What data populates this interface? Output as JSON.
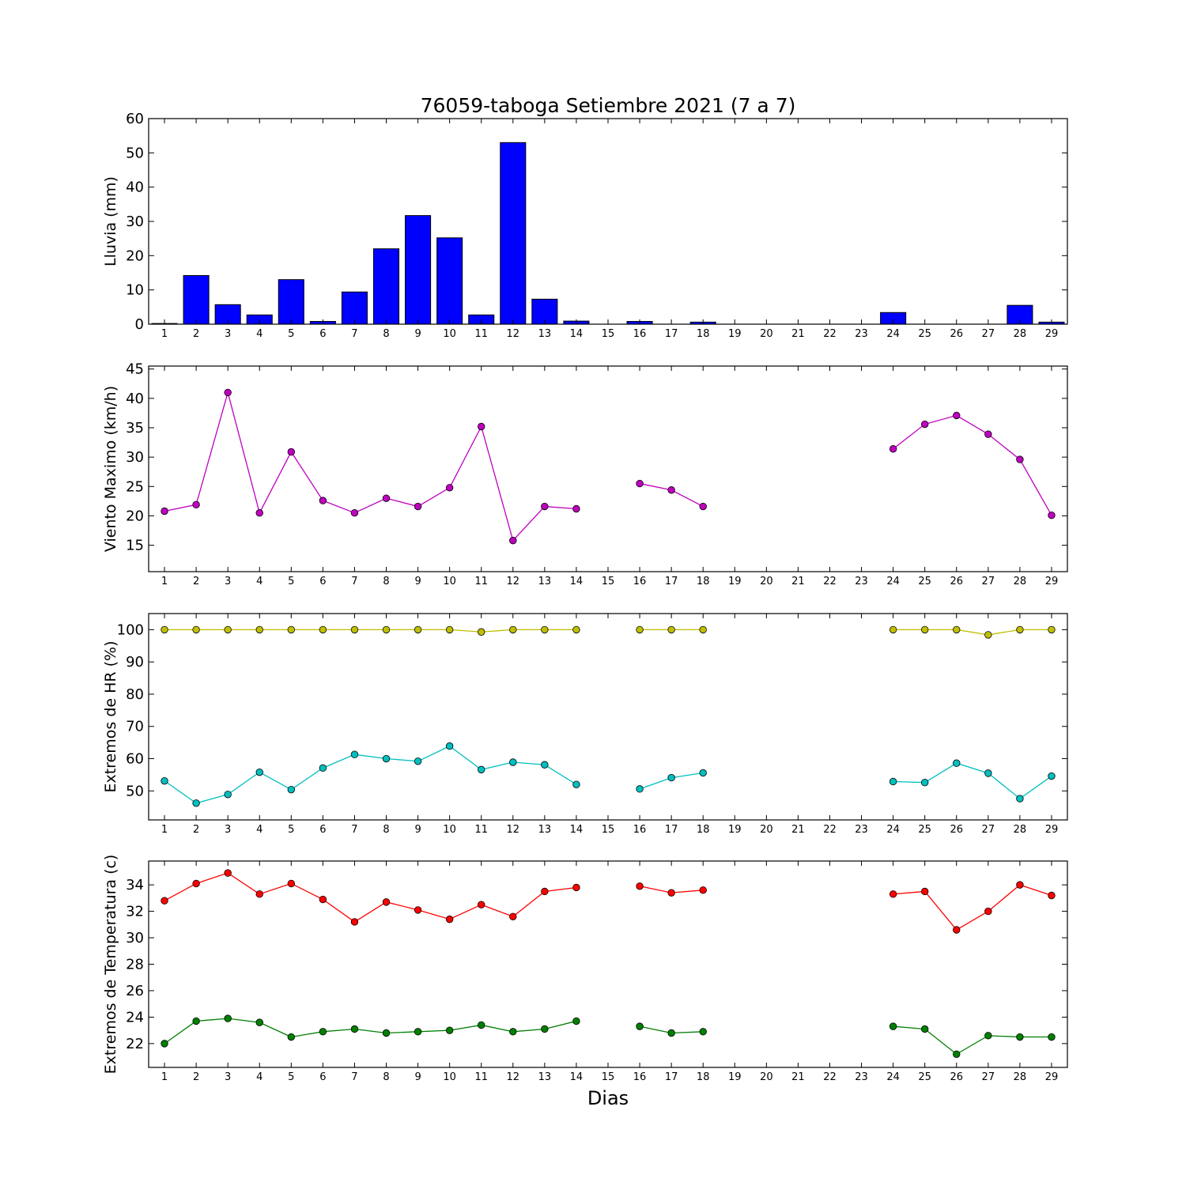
{
  "chart_data": {
    "title": "76059-taboga Setiembre 2021  (7 a 7)",
    "xlabel": "Dias",
    "days": [
      1,
      2,
      3,
      4,
      5,
      6,
      7,
      8,
      9,
      10,
      11,
      12,
      13,
      14,
      15,
      16,
      17,
      18,
      19,
      20,
      21,
      22,
      23,
      24,
      25,
      26,
      27,
      28,
      29
    ],
    "panels": [
      {
        "type": "bar",
        "ylabel": "Lluvia (mm)",
        "ylim": [
          0,
          60
        ],
        "yticks": [
          0,
          10,
          20,
          30,
          40,
          50,
          60
        ],
        "series": [
          {
            "color": "#0000ff",
            "values": [
              0.2,
              14.2,
              5.7,
              2.7,
              13.0,
              0.8,
              9.4,
              22.0,
              31.7,
              25.2,
              2.7,
              53.0,
              7.3,
              0.9,
              0,
              0.8,
              0,
              0.6,
              0,
              0,
              0,
              0,
              0,
              3.4,
              0,
              0,
              0,
              5.5,
              0.6
            ]
          }
        ]
      },
      {
        "type": "line",
        "ylabel": "Viento Maximo (km/h)",
        "ylim": [
          10.5,
          45.5
        ],
        "yticks": [
          15,
          20,
          25,
          30,
          35,
          40,
          45
        ],
        "series": [
          {
            "color": "#bf00bf",
            "values": [
              20.8,
              21.9,
              41.0,
              20.5,
              30.9,
              22.6,
              20.5,
              23.0,
              21.6,
              24.8,
              35.2,
              15.8,
              21.6,
              21.2,
              null,
              25.5,
              24.4,
              21.6,
              null,
              null,
              null,
              null,
              null,
              31.4,
              35.6,
              37.1,
              33.9,
              29.6,
              20.1
            ]
          }
        ]
      },
      {
        "type": "line",
        "ylabel": "Extremos de HR (%)",
        "ylim": [
          41,
          105
        ],
        "yticks": [
          50,
          60,
          70,
          80,
          90,
          100
        ],
        "series": [
          {
            "color": "#bfbf00",
            "values": [
              100,
              100,
              100,
              100,
              100,
              100,
              100,
              100,
              100,
              100,
              99.3,
              100,
              100,
              100,
              null,
              100,
              100,
              100,
              null,
              null,
              null,
              null,
              null,
              100,
              100,
              100,
              98.4,
              100,
              100
            ]
          },
          {
            "color": "#00bfbf",
            "values": [
              53.1,
              46.2,
              48.9,
              55.8,
              50.4,
              57.1,
              61.3,
              60.0,
              59.2,
              63.9,
              56.6,
              58.9,
              58.1,
              52.0,
              null,
              50.6,
              54.1,
              55.6,
              null,
              null,
              null,
              null,
              null,
              52.9,
              52.6,
              58.6,
              55.5,
              47.6,
              54.6
            ]
          }
        ]
      },
      {
        "type": "line",
        "ylabel": "Extremos de Temperatura (c)",
        "ylim": [
          20.2,
          35.8
        ],
        "yticks": [
          22,
          24,
          26,
          28,
          30,
          32,
          34
        ],
        "series": [
          {
            "color": "#ff0000",
            "values": [
              32.8,
              34.1,
              34.9,
              33.3,
              34.1,
              32.9,
              31.2,
              32.7,
              32.1,
              31.4,
              32.5,
              31.6,
              33.5,
              33.8,
              null,
              33.9,
              33.4,
              33.6,
              null,
              null,
              null,
              null,
              null,
              33.3,
              33.5,
              30.6,
              32.0,
              34.0,
              33.2
            ]
          },
          {
            "color": "#008000",
            "values": [
              22.0,
              23.7,
              23.9,
              23.6,
              22.5,
              22.9,
              23.1,
              22.8,
              22.9,
              23.0,
              23.4,
              22.9,
              23.1,
              23.7,
              null,
              23.3,
              22.8,
              22.9,
              null,
              null,
              null,
              null,
              null,
              23.3,
              23.1,
              21.2,
              22.6,
              22.5,
              22.5
            ]
          }
        ]
      }
    ]
  }
}
